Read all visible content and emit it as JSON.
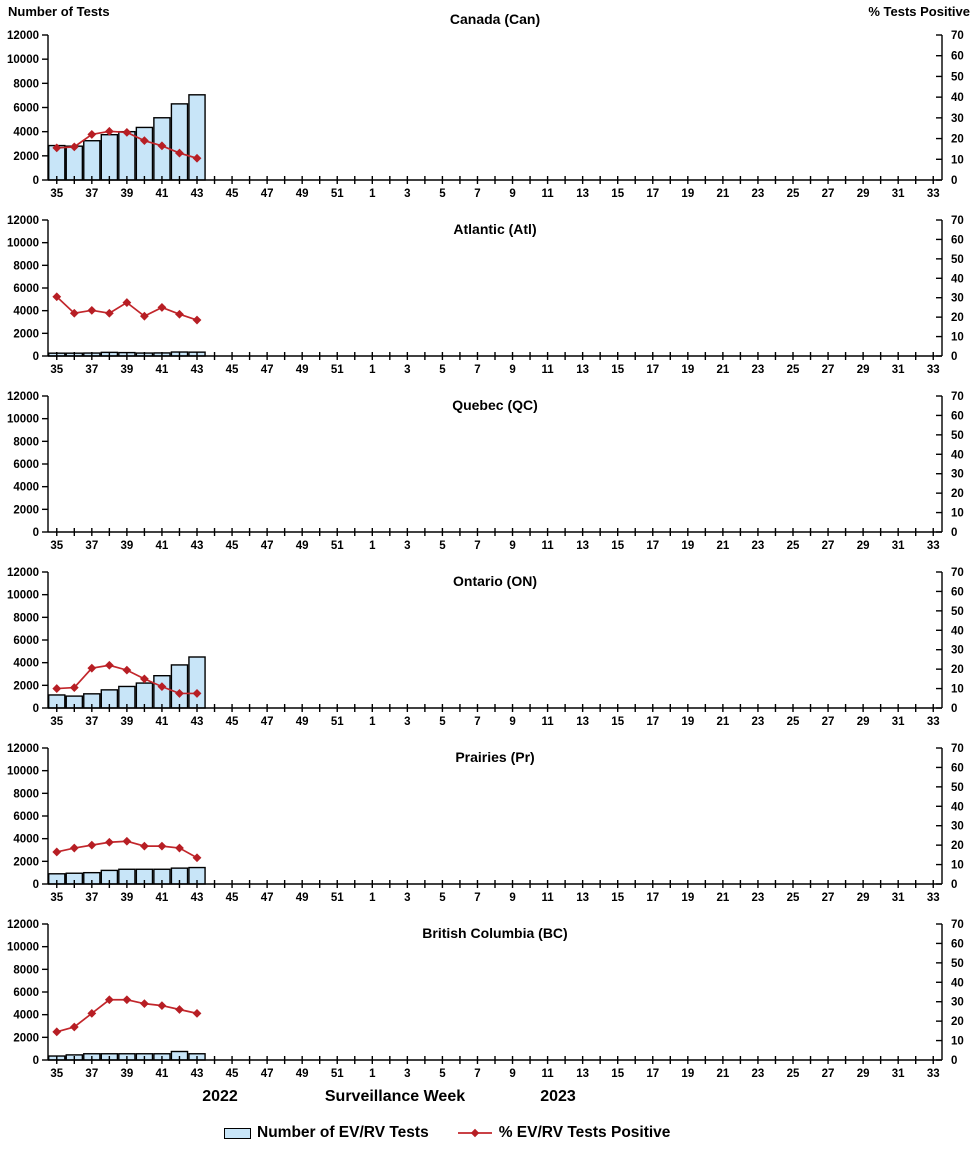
{
  "figure": {
    "left_axis_title": "Number of Tests",
    "right_axis_title": "% Tests Positive",
    "x_axis_title": "Surveillance Week",
    "year_left": "2022",
    "year_right": "2023",
    "legend": {
      "bar_label": "Number of EV/RV Tests",
      "line_label": "% EV/RV Tests Positive"
    },
    "colors": {
      "bar_fill": "#C8E5F8",
      "bar_stroke": "#000000",
      "line": "#C2262B",
      "marker": "#B71E24",
      "text": "#000000",
      "background": "#FFFFFF"
    }
  },
  "chart_data": {
    "type": "bar",
    "subtype": "multipanel bar+line, dual axis",
    "x_weeks": [
      35,
      36,
      37,
      38,
      39,
      40,
      41,
      42,
      43,
      44,
      45,
      46,
      47,
      48,
      49,
      50,
      51,
      52,
      1,
      2,
      3,
      4,
      5,
      6,
      7,
      8,
      9,
      10,
      11,
      12,
      13,
      14,
      15,
      16,
      17,
      18,
      19,
      20,
      21,
      22,
      23,
      24,
      25,
      26,
      27,
      28,
      29,
      30,
      31,
      32,
      33
    ],
    "x_tick_labels": [
      35,
      37,
      39,
      41,
      43,
      45,
      47,
      49,
      51,
      1,
      3,
      5,
      7,
      9,
      11,
      13,
      15,
      17,
      19,
      21,
      23,
      25,
      27,
      29,
      31,
      33
    ],
    "xlabel": "Surveillance Week",
    "left_axis": {
      "title": "Number of Tests",
      "lim": [
        0,
        12000
      ],
      "ticks": [
        0,
        2000,
        4000,
        6000,
        8000,
        10000,
        12000
      ]
    },
    "right_axis": {
      "title": "% Tests Positive",
      "lim": [
        0,
        70
      ],
      "ticks": [
        0,
        10,
        20,
        30,
        40,
        50,
        60,
        70
      ]
    },
    "legend_entries": [
      "Number of EV/RV Tests",
      "% EV/RV Tests Positive"
    ],
    "grid": false,
    "panels": [
      {
        "title": "Canada (Can)",
        "weeks": [
          35,
          36,
          37,
          38,
          39,
          40,
          41,
          42,
          43
        ],
        "tests": [
          2850,
          2800,
          3250,
          3750,
          4000,
          4350,
          5150,
          6300,
          7050
        ],
        "pct_positive": [
          15.5,
          16,
          22,
          23.5,
          23,
          19,
          16.5,
          13,
          10.5
        ]
      },
      {
        "title": "Atlantic (Atl)",
        "weeks": [
          35,
          36,
          37,
          38,
          39,
          40,
          41,
          42,
          43
        ],
        "tests": [
          250,
          250,
          260,
          320,
          300,
          260,
          270,
          350,
          340
        ],
        "pct_positive": [
          30.5,
          22,
          23.5,
          22,
          27.5,
          20.5,
          25,
          21.5,
          18.5
        ]
      },
      {
        "title": "Quebec (QC)",
        "weeks": [],
        "tests": [],
        "pct_positive": []
      },
      {
        "title": "Ontario (ON)",
        "weeks": [
          35,
          36,
          37,
          38,
          39,
          40,
          41,
          42,
          43
        ],
        "tests": [
          1150,
          1050,
          1250,
          1600,
          1900,
          2200,
          2850,
          3800,
          4500
        ],
        "pct_positive": [
          10,
          10.5,
          20.5,
          22,
          19.5,
          15,
          11,
          7.5,
          7.5
        ]
      },
      {
        "title": "Prairies (Pr)",
        "weeks": [
          35,
          36,
          37,
          38,
          39,
          40,
          41,
          42,
          43
        ],
        "tests": [
          900,
          950,
          1000,
          1200,
          1300,
          1300,
          1300,
          1400,
          1450
        ],
        "pct_positive": [
          16.5,
          18.5,
          20,
          21.5,
          22,
          19.5,
          19.5,
          18.5,
          13.5
        ]
      },
      {
        "title": "British Columbia (BC)",
        "weeks": [
          35,
          36,
          37,
          38,
          39,
          40,
          41,
          42,
          43
        ],
        "tests": [
          350,
          450,
          550,
          550,
          550,
          550,
          550,
          750,
          550
        ],
        "pct_positive": [
          14.5,
          17,
          24,
          31,
          31,
          29,
          28,
          26,
          24
        ]
      }
    ]
  }
}
